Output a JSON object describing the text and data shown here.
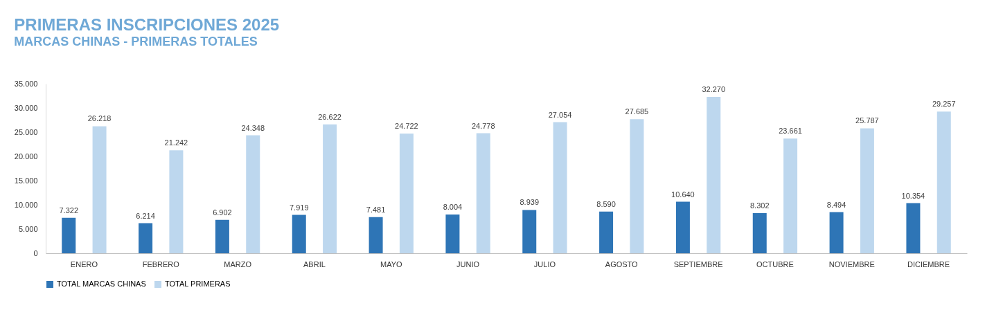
{
  "chart_data": {
    "type": "bar",
    "title": "PRIMERAS INSCRIPCIONES 2025",
    "subtitle": "MARCAS CHINAS - PRIMERAS TOTALES",
    "categories": [
      "ENERO",
      "FEBRERO",
      "MARZO",
      "ABRIL",
      "MAYO",
      "JUNIO",
      "JULIO",
      "AGOSTO",
      "SEPTIEMBRE",
      "OCTUBRE",
      "NOVIEMBRE",
      "DICIEMBRE"
    ],
    "series": [
      {
        "name": "TOTAL MARCAS CHINAS",
        "color": "#2e75b6",
        "values": [
          7322,
          6214,
          6902,
          7919,
          7481,
          8004,
          8939,
          8590,
          10640,
          8302,
          8494,
          10354
        ],
        "value_labels": [
          "7.322",
          "6.214",
          "6.902",
          "7.919",
          "7.481",
          "8.004",
          "8.939",
          "8.590",
          "10.640",
          "8.302",
          "8.494",
          "10.354"
        ]
      },
      {
        "name": "TOTAL PRIMERAS",
        "color": "#bdd7ee",
        "values": [
          26218,
          21242,
          24348,
          26622,
          24722,
          24778,
          27054,
          27685,
          32270,
          23661,
          25787,
          29257
        ],
        "value_labels": [
          "26.218",
          "21.242",
          "24.348",
          "26.622",
          "24.722",
          "24.778",
          "27.054",
          "27.685",
          "32.270",
          "23.661",
          "25.787",
          "29.257"
        ]
      }
    ],
    "ylim": [
      0,
      35000
    ],
    "yticks": [
      0,
      {
        "value": 5000,
        "label": "5.000"
      },
      {
        "value": 10000,
        "label": "10.000"
      },
      {
        "value": 15000,
        "label": "15.000"
      },
      {
        "value": 20000,
        "label": "20.000"
      },
      {
        "value": 25000,
        "label": "25.000"
      },
      {
        "value": 30000,
        "label": "30.000"
      },
      {
        "value": 35000,
        "label": "35.000"
      }
    ],
    "legend": "bottom",
    "grid": false
  }
}
